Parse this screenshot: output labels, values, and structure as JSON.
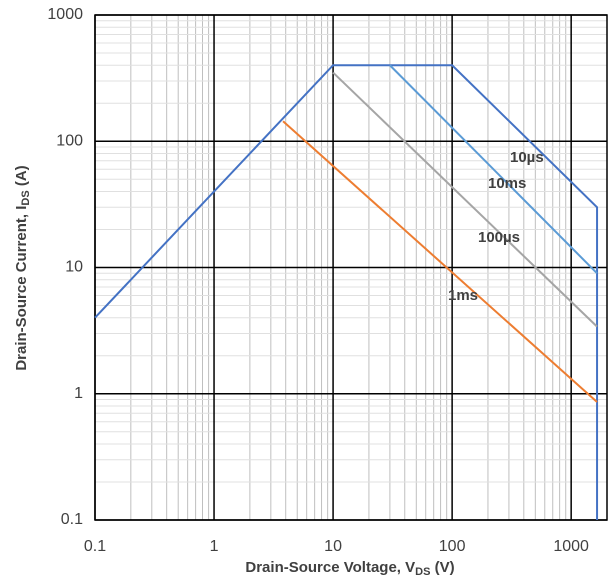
{
  "chart_data": {
    "type": "line",
    "log_x": true,
    "log_y": true,
    "grid": true,
    "minor_grid": true,
    "x_label": {
      "text": "Drain-Source Voltage, V",
      "subscript": "DS",
      "suffix": " (V)"
    },
    "y_label": {
      "text": "Drain-Source Current, I",
      "subscript": "DS",
      "suffix": " (A)"
    },
    "xlim": [
      0.1,
      2000
    ],
    "ylim": [
      0.1,
      1000
    ],
    "xticks": [
      0.1,
      1,
      10,
      100,
      1000
    ],
    "yticks": [
      0.1,
      1,
      10,
      100,
      1000
    ],
    "series": [
      {
        "name": "10µs",
        "color": "#4472c4",
        "x": [
          0.1,
          10,
          100,
          1650,
          1650
        ],
        "values": [
          4,
          400,
          400,
          30,
          0.1
        ]
      },
      {
        "name": "10ms",
        "color": "#5b9bd5",
        "x": [
          30,
          1650
        ],
        "values": [
          400,
          9
        ]
      },
      {
        "name": "100µs",
        "color": "#a5a5a5",
        "x": [
          10,
          1650
        ],
        "values": [
          350,
          3.4
        ]
      },
      {
        "name": "1ms",
        "color": "#ed7d31",
        "x": [
          3.8,
          1650
        ],
        "values": [
          144,
          0.86
        ]
      }
    ]
  }
}
